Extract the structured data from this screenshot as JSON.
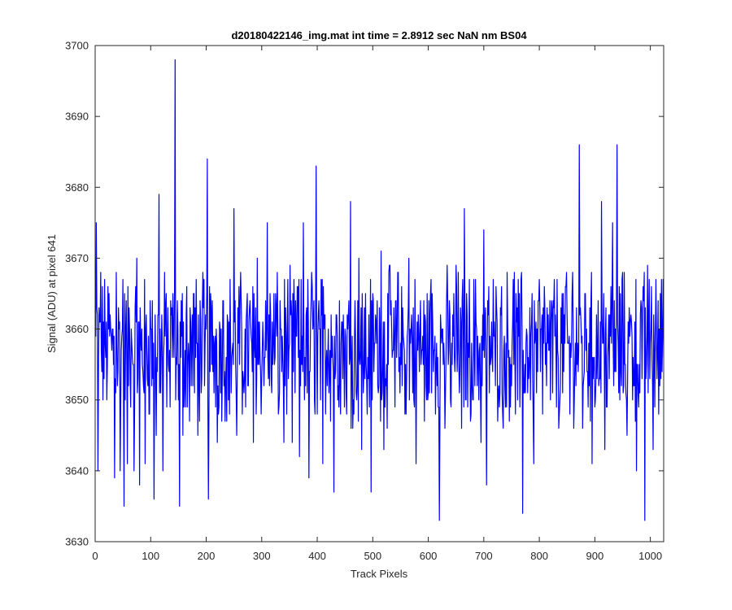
{
  "chart_data": {
    "type": "line",
    "title": "d20180422146_img.mat int time = 2.8912 sec  NaN nm BS04",
    "xlabel": "Track Pixels",
    "ylabel": "Signal (ADU) at pixel 641",
    "xlim": [
      0,
      1024
    ],
    "ylim": [
      3630,
      3700
    ],
    "xticks": [
      0,
      100,
      200,
      300,
      400,
      500,
      600,
      700,
      800,
      900,
      1000
    ],
    "yticks": [
      3630,
      3640,
      3650,
      3660,
      3670,
      3680,
      3690,
      3700
    ],
    "grid": false,
    "legend": "none",
    "series": [
      {
        "color": "#0000ff",
        "note_points": "noisy signal around 3658 ADU; listed points are notable peaks/troughs read from the plot, remaining samples vary roughly 3645-3668",
        "points": [
          [
            0,
            3664
          ],
          [
            2,
            3675
          ],
          [
            5,
            3640
          ],
          [
            10,
            3668
          ],
          [
            18,
            3658
          ],
          [
            25,
            3665
          ],
          [
            35,
            3639
          ],
          [
            38,
            3668
          ],
          [
            45,
            3640
          ],
          [
            50,
            3667
          ],
          [
            52,
            3635
          ],
          [
            58,
            3641
          ],
          [
            65,
            3660
          ],
          [
            70,
            3640
          ],
          [
            75,
            3670
          ],
          [
            80,
            3638
          ],
          [
            90,
            3641
          ],
          [
            100,
            3660
          ],
          [
            106,
            3636
          ],
          [
            110,
            3645
          ],
          [
            115,
            3679
          ],
          [
            122,
            3640
          ],
          [
            128,
            3665
          ],
          [
            135,
            3649
          ],
          [
            140,
            3665
          ],
          [
            144,
            3698
          ],
          [
            147,
            3655
          ],
          [
            152,
            3635
          ],
          [
            158,
            3645
          ],
          [
            165,
            3666
          ],
          [
            170,
            3647
          ],
          [
            178,
            3665
          ],
          [
            185,
            3645
          ],
          [
            190,
            3661
          ],
          [
            197,
            3652
          ],
          [
            202,
            3684
          ],
          [
            204,
            3636
          ],
          [
            210,
            3655
          ],
          [
            220,
            3644
          ],
          [
            230,
            3664
          ],
          [
            240,
            3650
          ],
          [
            250,
            3677
          ],
          [
            255,
            3645
          ],
          [
            265,
            3648
          ],
          [
            270,
            3660
          ],
          [
            285,
            3644
          ],
          [
            292,
            3670
          ],
          [
            300,
            3653
          ],
          [
            310,
            3675
          ],
          [
            320,
            3655
          ],
          [
            325,
            3665
          ],
          [
            330,
            3648
          ],
          [
            335,
            3660
          ],
          [
            340,
            3644
          ],
          [
            350,
            3658
          ],
          [
            355,
            3644
          ],
          [
            365,
            3666
          ],
          [
            368,
            3642
          ],
          [
            375,
            3675
          ],
          [
            385,
            3639
          ],
          [
            390,
            3668
          ],
          [
            398,
            3683
          ],
          [
            400,
            3648
          ],
          [
            405,
            3660
          ],
          [
            410,
            3641
          ],
          [
            420,
            3660
          ],
          [
            425,
            3662
          ],
          [
            430,
            3637
          ],
          [
            440,
            3664
          ],
          [
            445,
            3661
          ],
          [
            452,
            3651
          ],
          [
            460,
            3678
          ],
          [
            466,
            3648
          ],
          [
            475,
            3670
          ],
          [
            480,
            3643
          ],
          [
            490,
            3648
          ],
          [
            497,
            3637
          ],
          [
            505,
            3662
          ],
          [
            515,
            3671
          ],
          [
            520,
            3643
          ],
          [
            530,
            3669
          ],
          [
            540,
            3649
          ],
          [
            545,
            3668
          ],
          [
            550,
            3658
          ],
          [
            560,
            3648
          ],
          [
            565,
            3670
          ],
          [
            570,
            3662
          ],
          [
            578,
            3641
          ],
          [
            585,
            3660
          ],
          [
            593,
            3647
          ],
          [
            600,
            3651
          ],
          [
            605,
            3667
          ],
          [
            610,
            3657
          ],
          [
            620,
            3633
          ],
          [
            625,
            3660
          ],
          [
            630,
            3646
          ],
          [
            640,
            3650
          ],
          [
            650,
            3669
          ],
          [
            660,
            3646
          ],
          [
            665,
            3677
          ],
          [
            672,
            3658
          ],
          [
            680,
            3650
          ],
          [
            687,
            3660
          ],
          [
            695,
            3644
          ],
          [
            700,
            3674
          ],
          [
            705,
            3638
          ],
          [
            712,
            3655
          ],
          [
            720,
            3658
          ],
          [
            730,
            3663
          ],
          [
            735,
            3646
          ],
          [
            740,
            3658
          ],
          [
            755,
            3668
          ],
          [
            765,
            3649
          ],
          [
            770,
            3634
          ],
          [
            775,
            3651
          ],
          [
            785,
            3659
          ],
          [
            790,
            3641
          ],
          [
            800,
            3667
          ],
          [
            806,
            3648
          ],
          [
            815,
            3658
          ],
          [
            820,
            3650
          ],
          [
            825,
            3664
          ],
          [
            835,
            3646
          ],
          [
            840,
            3658
          ],
          [
            848,
            3666
          ],
          [
            855,
            3648
          ],
          [
            860,
            3668
          ],
          [
            865,
            3658
          ],
          [
            872,
            3686
          ],
          [
            878,
            3646
          ],
          [
            885,
            3660
          ],
          [
            895,
            3641
          ],
          [
            905,
            3657
          ],
          [
            912,
            3678
          ],
          [
            918,
            3643
          ],
          [
            925,
            3662
          ],
          [
            932,
            3675
          ],
          [
            940,
            3686
          ],
          [
            945,
            3650
          ],
          [
            950,
            3668
          ],
          [
            958,
            3645
          ],
          [
            965,
            3662
          ],
          [
            975,
            3640
          ],
          [
            982,
            3662
          ],
          [
            990,
            3633
          ],
          [
            995,
            3669
          ],
          [
            1000,
            3658
          ],
          [
            1005,
            3643
          ],
          [
            1010,
            3667
          ],
          [
            1015,
            3648
          ],
          [
            1020,
            3667
          ],
          [
            1024,
            3656
          ]
        ]
      }
    ]
  }
}
